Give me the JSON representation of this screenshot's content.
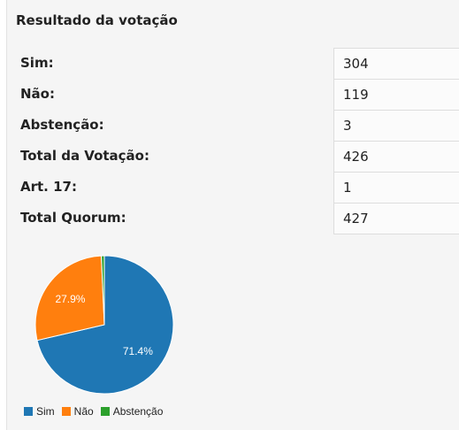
{
  "title": "Resultado da votação",
  "results": [
    {
      "label": "Sim:",
      "value": "304"
    },
    {
      "label": "Não:",
      "value": "119"
    },
    {
      "label": "Abstenção:",
      "value": "3"
    },
    {
      "label": "Total da Votação:",
      "value": "426"
    },
    {
      "label": "Art. 17:",
      "value": "1"
    },
    {
      "label": "Total Quorum:",
      "value": "427"
    }
  ],
  "chart_data": {
    "type": "pie",
    "categories": [
      "Sim",
      "Não",
      "Abstenção"
    ],
    "values": [
      304,
      119,
      3
    ],
    "labels": [
      "71.4%",
      "27.9%",
      ""
    ],
    "colors": [
      "#1f77b4",
      "#ff7f0e",
      "#2ca02c"
    ],
    "legend_position": "bottom"
  }
}
